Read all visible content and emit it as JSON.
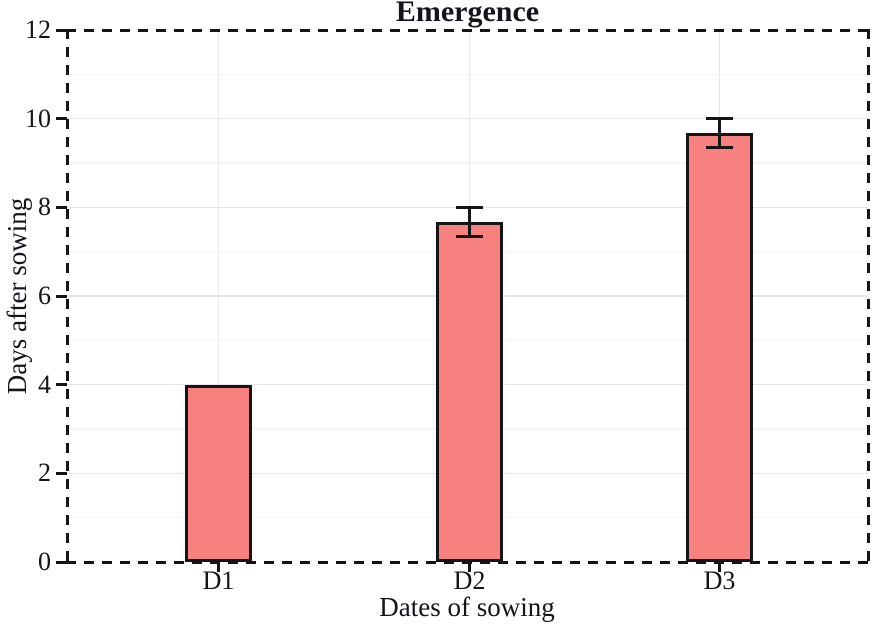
{
  "chart_data": {
    "type": "bar",
    "title": "Emergence",
    "xlabel": "Dates of sowing",
    "ylabel": "Days after sowing",
    "categories": [
      "D1",
      "D2",
      "D3"
    ],
    "values": [
      4.0,
      7.67,
      9.67
    ],
    "error_bars": [
      0,
      0.33,
      0.33
    ],
    "ylim": [
      0,
      12
    ],
    "y_ticks": [
      0,
      2,
      4,
      6,
      8,
      10,
      12
    ],
    "grid": {
      "horizontal_major": [
        2,
        4,
        6,
        8,
        10
      ],
      "horizontal_minor": [
        1,
        3,
        5,
        7,
        9,
        11
      ],
      "vertical_at_category_centers": true
    },
    "legend": "none",
    "frame_style": "dashed-rectangle",
    "colors": {
      "bar_fill": "#F6817E",
      "bar_border": "#151515",
      "frame": "#151515",
      "grid_major": "#E7E7E7",
      "grid_minor": "#F4F4F4",
      "text": "#14141A",
      "background": "#FFFFFF"
    }
  }
}
